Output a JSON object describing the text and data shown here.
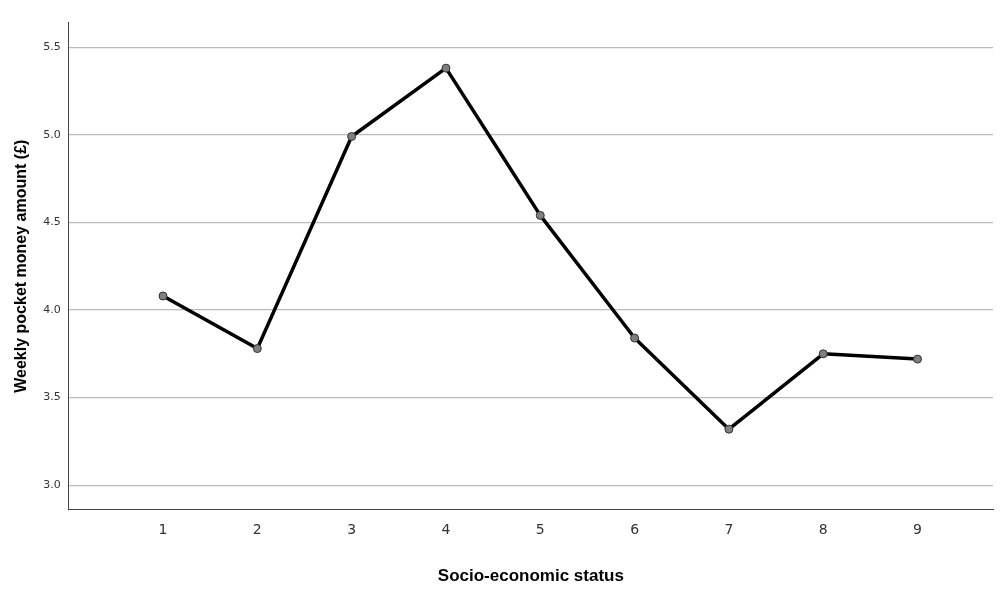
{
  "chart_data": {
    "type": "line",
    "xlabel": "Socio-economic status",
    "ylabel": "Weekly pocket money amount (£)",
    "x": [
      1,
      2,
      3,
      4,
      5,
      6,
      7,
      8,
      9
    ],
    "series": [
      {
        "color": "#000000",
        "values": [
          4.08,
          3.78,
          4.99,
          5.38,
          4.54,
          3.84,
          3.32,
          3.75,
          3.72
        ]
      }
    ],
    "xlim": [
      0,
      9.8
    ],
    "xticks": [
      1,
      2,
      3,
      4,
      5,
      6,
      7,
      8,
      9
    ],
    "ylim": [
      2.86,
      5.64
    ],
    "yticks": [
      {
        "value": 3.0,
        "label": "3.0"
      },
      {
        "value": 3.5,
        "label": "3.5"
      },
      {
        "value": 4.0,
        "label": "4.0"
      },
      {
        "value": 4.5,
        "label": "4.5"
      },
      {
        "value": 5.0,
        "label": "5.0"
      },
      {
        "value": 5.5,
        "label": "5.5"
      }
    ],
    "grid": "y",
    "marker": "circle",
    "line_style": "solid",
    "legend": false
  }
}
